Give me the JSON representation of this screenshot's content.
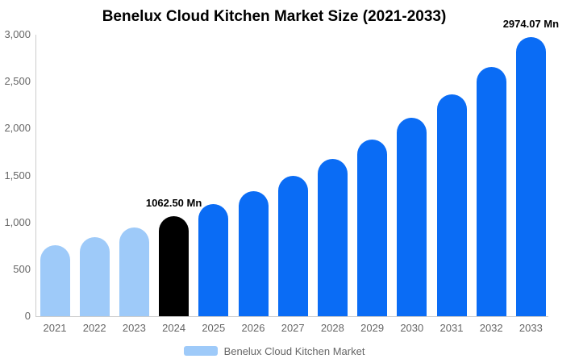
{
  "chart_data": {
    "type": "bar",
    "title": "Benelux Cloud Kitchen Market Size (2021-2033)",
    "categories": [
      "2021",
      "2022",
      "2023",
      "2024",
      "2025",
      "2026",
      "2027",
      "2028",
      "2029",
      "2030",
      "2031",
      "2032",
      "2033"
    ],
    "series": [
      {
        "name": "Benelux Cloud Kitchen Market",
        "values": [
          754,
          845,
          948,
          1062.5,
          1191,
          1336,
          1498,
          1679,
          1883,
          2111,
          2367,
          2654,
          2974.07
        ]
      }
    ],
    "bar_colors": [
      "#9ecaf9",
      "#9ecaf9",
      "#9ecaf9",
      "#000000",
      "#0a6cf5",
      "#0a6cf5",
      "#0a6cf5",
      "#0a6cf5",
      "#0a6cf5",
      "#0a6cf5",
      "#0a6cf5",
      "#0a6cf5",
      "#0a6cf5"
    ],
    "data_labels": [
      {
        "category": "2024",
        "index": 3,
        "text": "1062.50 Mn"
      },
      {
        "category": "2033",
        "index": 12,
        "text": "2974.07 Mn"
      }
    ],
    "xlabel": "",
    "ylabel": "",
    "ylim": [
      0,
      3000
    ],
    "ytick_values": [
      0,
      500,
      1000,
      1500,
      2000,
      2500,
      3000
    ],
    "ytick_labels": [
      "0",
      "500",
      "1,000",
      "1,500",
      "2,000",
      "2,500",
      "3,000"
    ],
    "grid": false,
    "legend_position": "bottom",
    "legend": {
      "label": "Benelux Cloud Kitchen Market",
      "swatch_color": "#9ecaf9"
    },
    "colors": {
      "axis_line": "#cccccc",
      "tick_text": "#666666",
      "title_text": "#000000",
      "data_label_text": "#000000"
    }
  }
}
